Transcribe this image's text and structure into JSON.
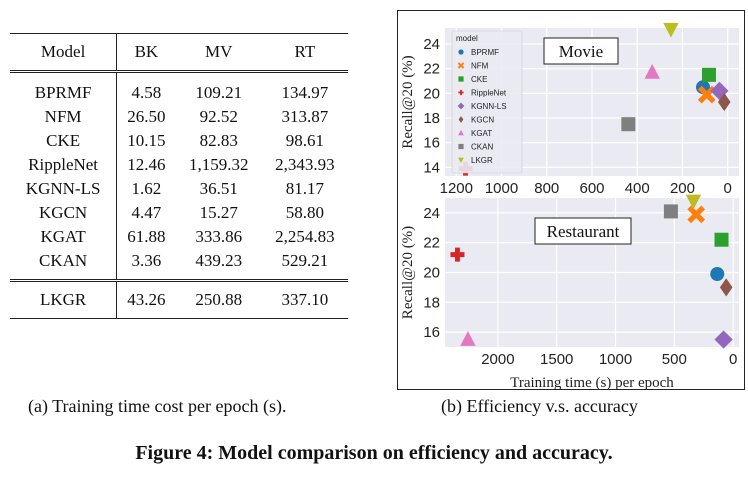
{
  "table": {
    "headers": [
      "Model",
      "BK",
      "MV",
      "RT"
    ],
    "rows": [
      [
        "BPRMF",
        "4.58",
        "109.21",
        "134.97"
      ],
      [
        "NFM",
        "26.50",
        "92.52",
        "313.87"
      ],
      [
        "CKE",
        "10.15",
        "82.83",
        "98.61"
      ],
      [
        "RippleNet",
        "12.46",
        "1,159.32",
        "2,343.93"
      ],
      [
        "KGNN-LS",
        "1.62",
        "36.51",
        "81.17"
      ],
      [
        "KGCN",
        "4.47",
        "15.27",
        "58.80"
      ],
      [
        "KGAT",
        "61.88",
        "333.86",
        "2,254.83"
      ],
      [
        "CKAN",
        "3.36",
        "439.23",
        "529.21"
      ]
    ],
    "final_row": [
      "LKGR",
      "43.26",
      "250.88",
      "337.10"
    ]
  },
  "captions": {
    "a": "(a) Training time cost per epoch (s).",
    "b": "(b) Efficiency v.s. accuracy",
    "figure": "Figure 4: Model comparison on efficiency and accuracy."
  },
  "legend": {
    "title": "model",
    "entries": [
      {
        "name": "BPRMF",
        "color": "#1f77b4",
        "marker": "circle"
      },
      {
        "name": "NFM",
        "color": "#ff7f0e",
        "marker": "x"
      },
      {
        "name": "CKE",
        "color": "#2ca02c",
        "marker": "square"
      },
      {
        "name": "RippleNet",
        "color": "#d62728",
        "marker": "plus"
      },
      {
        "name": "KGNN-LS",
        "color": "#9467bd",
        "marker": "diamond"
      },
      {
        "name": "KGCN",
        "color": "#8c564b",
        "marker": "thin-diamond"
      },
      {
        "name": "KGAT",
        "color": "#e377c2",
        "marker": "triangle-up"
      },
      {
        "name": "CKAN",
        "color": "#7f7f7f",
        "marker": "square"
      },
      {
        "name": "LKGR",
        "color": "#bcbd22",
        "marker": "triangle-down"
      }
    ]
  },
  "chart_data": [
    {
      "type": "scatter",
      "title": "Movie",
      "xlabel": "",
      "ylabel": "Recall@20 (%)",
      "xlim": [
        1250,
        -50
      ],
      "ylim": [
        13.3,
        25.3
      ],
      "xticks": [
        1200,
        1000,
        800,
        600,
        400,
        200,
        0
      ],
      "yticks": [
        14,
        16,
        18,
        20,
        22,
        24
      ],
      "points": [
        {
          "model": "BPRMF",
          "x": 109.21,
          "y": 20.5
        },
        {
          "model": "NFM",
          "x": 92.52,
          "y": 19.9
        },
        {
          "model": "CKE",
          "x": 82.83,
          "y": 21.5
        },
        {
          "model": "RippleNet",
          "x": 1159.32,
          "y": 13.9
        },
        {
          "model": "KGNN-LS",
          "x": 36.51,
          "y": 20.2
        },
        {
          "model": "KGCN",
          "x": 15.27,
          "y": 19.3
        },
        {
          "model": "KGAT",
          "x": 333.86,
          "y": 21.7
        },
        {
          "model": "CKAN",
          "x": 439.23,
          "y": 17.5
        },
        {
          "model": "LKGR",
          "x": 250.88,
          "y": 25.2
        }
      ]
    },
    {
      "type": "scatter",
      "title": "Restaurant",
      "xlabel": "Training time (s) per epoch",
      "ylabel": "Recall@20 (%)",
      "xlim": [
        2450,
        -50
      ],
      "ylim": [
        15.0,
        25.0
      ],
      "xticks": [
        2000,
        1500,
        1000,
        500,
        0
      ],
      "yticks": [
        16,
        18,
        20,
        22,
        24
      ],
      "points": [
        {
          "model": "BPRMF",
          "x": 134.97,
          "y": 19.9
        },
        {
          "model": "NFM",
          "x": 313.87,
          "y": 23.9
        },
        {
          "model": "CKE",
          "x": 98.61,
          "y": 22.2
        },
        {
          "model": "RippleNet",
          "x": 2343.93,
          "y": 21.2
        },
        {
          "model": "KGNN-LS",
          "x": 81.17,
          "y": 15.5
        },
        {
          "model": "KGCN",
          "x": 58.8,
          "y": 19.0
        },
        {
          "model": "KGAT",
          "x": 2254.83,
          "y": 15.5
        },
        {
          "model": "CKAN",
          "x": 529.21,
          "y": 24.1
        },
        {
          "model": "LKGR",
          "x": 337.1,
          "y": 24.8
        }
      ]
    }
  ]
}
